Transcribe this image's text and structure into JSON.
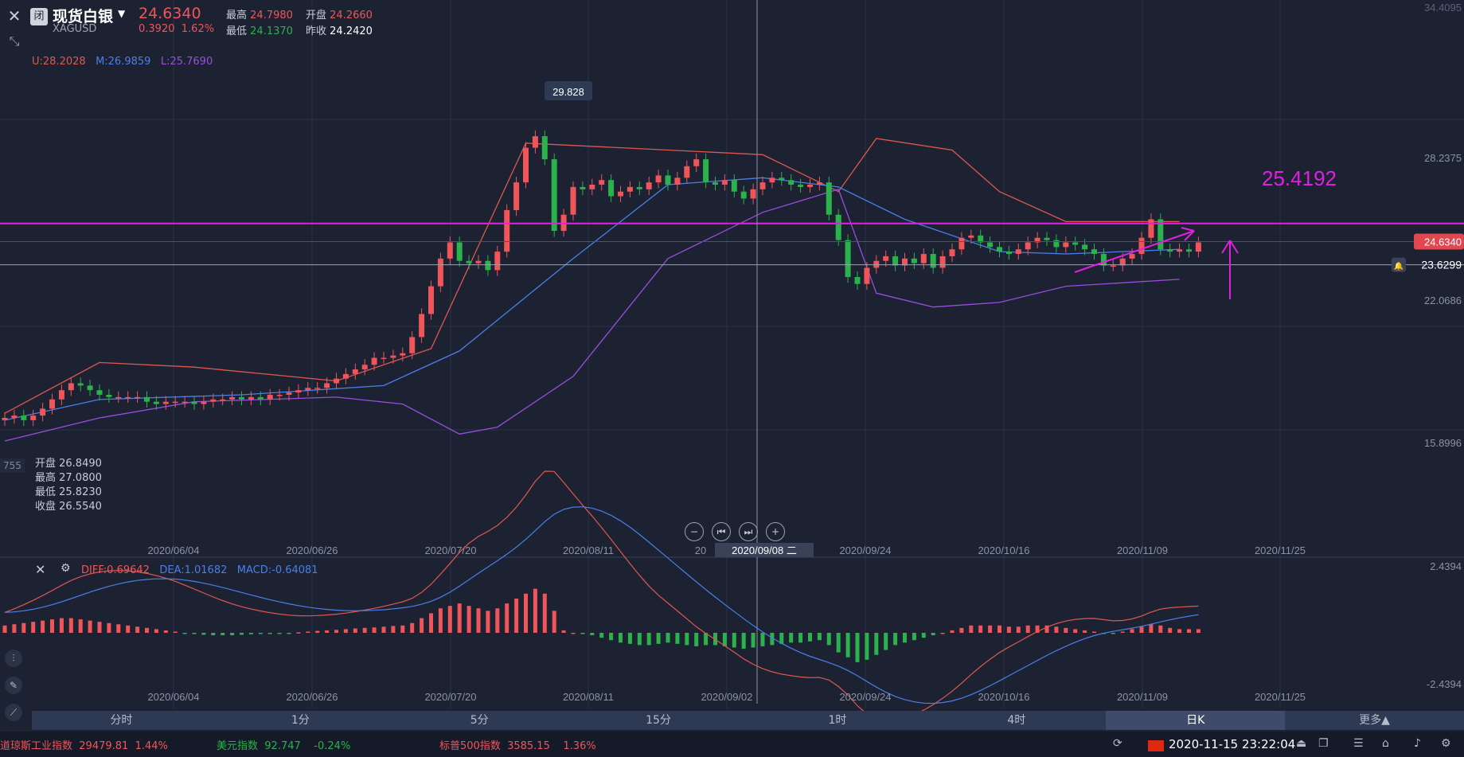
{
  "header": {
    "close_icon": "close-icon",
    "badge": "闭",
    "title": "现货白银",
    "symbol": "XAGUSD",
    "price": "24.6340",
    "change": "0.3920",
    "change_pct": "1.62%",
    "high_label": "最高",
    "high": "24.7980",
    "open_label": "开盘",
    "open": "24.2660",
    "low_label": "最低",
    "low": "24.1370",
    "prev_label": "昨收",
    "prev": "24.2420"
  },
  "bands": {
    "u": "U:28.2028",
    "m": "M:26.9859",
    "l": "L:25.7690"
  },
  "ohlc_box": {
    "open": "开盘 26.8490",
    "high": "最高 27.0800",
    "low": "最低 25.8230",
    "close": "收盘 26.5540",
    "left_edge_value": "755"
  },
  "annotations": {
    "peak_label": "29.828",
    "level_label": "25.4192"
  },
  "right_axis": {
    "top_label": "34.4095",
    "labels": [
      "28.2375",
      "22.0686",
      "15.8996"
    ],
    "current_price": "24.6340",
    "alert_price": "23.6299",
    "macd_labels": [
      "2.4394",
      "-2.4394"
    ]
  },
  "x_axis_labels": [
    "2020/06/04",
    "2020/06/26",
    "2020/07/20",
    "2020/08/11",
    "20",
    "2020/09/24",
    "2020/10/16",
    "2020/11/09",
    "2020/11/25"
  ],
  "crosshair_date": "2020/09/08 二",
  "macd_x_axis_labels": [
    "2020/06/04",
    "2020/06/26",
    "2020/07/20",
    "2020/08/11",
    "2020/09/02",
    "2020/09/24",
    "2020/10/16",
    "2020/11/09",
    "2020/11/25"
  ],
  "macd": {
    "diff": "DIFF:0.69642",
    "dea": "DEA:1.01682",
    "macd": "MACD:-0.64081"
  },
  "timeframes": [
    "分时",
    "1分",
    "5分",
    "15分",
    "1时",
    "4时",
    "日K",
    "更多▲"
  ],
  "active_timeframe": "日K",
  "status_bar": {
    "ticker1_name": "道琼斯工业指数",
    "ticker1_value": "29479.81",
    "ticker1_pct": "1.44%",
    "ticker2_name": "美元指数",
    "ticker2_value": "92.747",
    "ticker2_pct": "-0.24%",
    "ticker3_name": "标普500指数",
    "ticker3_value": "3585.15",
    "ticker3_pct": "1.36%",
    "datetime": "2020-11-15 23:22:04"
  },
  "colors": {
    "up": "#f0555a",
    "down": "#2bb24c",
    "magenta": "#e020e0",
    "upper_band": "#e0574f",
    "mid_band": "#4a7fe8",
    "lower_band": "#9a4de0",
    "background": "#1c2232"
  },
  "chart_data": [
    {
      "type": "candlestick",
      "series_name": "XAGUSD",
      "x": [
        "05/21",
        "05/22",
        "05/25",
        "05/26",
        "05/27",
        "05/28",
        "05/29",
        "06/01",
        "06/02",
        "06/03",
        "06/04",
        "06/05",
        "06/08",
        "06/09",
        "06/10",
        "06/11",
        "06/12",
        "06/15",
        "06/16",
        "06/17",
        "06/18",
        "06/19",
        "06/22",
        "06/23",
        "06/24",
        "06/25",
        "06/26",
        "06/29",
        "06/30",
        "07/01",
        "07/02",
        "07/03",
        "07/06",
        "07/07",
        "07/08",
        "07/09",
        "07/10",
        "07/13",
        "07/14",
        "07/15",
        "07/16",
        "07/17",
        "07/20",
        "07/21",
        "07/22",
        "07/23",
        "07/24",
        "07/27",
        "07/28",
        "07/29",
        "07/30",
        "07/31",
        "08/03",
        "08/04",
        "08/05",
        "08/06",
        "08/07",
        "08/10",
        "08/11",
        "08/12",
        "08/13",
        "08/14",
        "08/17",
        "08/18",
        "08/19",
        "08/20",
        "08/21",
        "08/24",
        "08/25",
        "08/26",
        "08/27",
        "08/28",
        "08/31",
        "09/01",
        "09/02",
        "09/03",
        "09/04",
        "09/07",
        "09/08",
        "09/09",
        "09/10",
        "09/11",
        "09/14",
        "09/15",
        "09/16",
        "09/17",
        "09/18",
        "09/21",
        "09/22",
        "09/23",
        "09/24",
        "09/25",
        "09/28",
        "09/29",
        "09/30",
        "10/01",
        "10/02",
        "10/05",
        "10/06",
        "10/07",
        "10/08",
        "10/09",
        "10/12",
        "10/13",
        "10/14",
        "10/15",
        "10/16",
        "10/19",
        "10/20",
        "10/21",
        "10/22",
        "10/23",
        "10/26",
        "10/27",
        "10/28",
        "10/29",
        "10/30",
        "11/02",
        "11/03",
        "11/04",
        "11/05",
        "11/06",
        "11/09",
        "11/10",
        "11/11",
        "11/12",
        "11/13"
      ],
      "open": [
        16.9,
        17.0,
        17.1,
        16.9,
        17.1,
        17.4,
        17.8,
        18.2,
        18.5,
        18.4,
        18.2,
        18.0,
        17.9,
        17.9,
        17.9,
        17.9,
        17.7,
        17.6,
        17.7,
        17.7,
        17.7,
        17.6,
        17.7,
        17.8,
        17.8,
        17.9,
        17.8,
        17.9,
        17.8,
        18.0,
        18.0,
        18.1,
        18.2,
        18.3,
        18.3,
        18.5,
        18.7,
        18.9,
        19.1,
        19.3,
        19.6,
        19.6,
        19.7,
        19.8,
        20.5,
        21.5,
        22.7,
        23.9,
        24.6,
        23.8,
        23.7,
        23.8,
        23.4,
        24.2,
        26.0,
        27.2,
        28.7,
        29.2,
        28.2,
        25.1,
        25.8,
        27.0,
        26.9,
        27.1,
        27.3,
        26.6,
        26.8,
        27.0,
        26.9,
        27.2,
        27.5,
        27.1,
        27.4,
        27.9,
        28.2,
        27.2,
        27.1,
        27.3,
        26.8,
        26.5,
        26.9,
        27.2,
        27.4,
        27.3,
        27.1,
        27.0,
        27.1,
        27.2,
        25.8,
        24.7,
        23.1,
        22.8,
        23.5,
        23.8,
        24.0,
        23.6,
        23.9,
        23.7,
        24.1,
        23.5,
        24.0,
        24.3,
        24.8,
        24.9,
        24.6,
        24.4,
        24.2,
        24.1,
        24.3,
        24.6,
        24.8,
        24.7,
        24.4,
        24.6,
        24.5,
        24.3,
        24.1,
        23.6,
        23.6,
        23.9,
        24.1,
        24.8,
        25.6,
        24.3,
        24.2,
        24.3,
        24.2
      ],
      "close": [
        17.0,
        17.1,
        16.9,
        17.1,
        17.4,
        17.8,
        18.2,
        18.5,
        18.4,
        18.2,
        18.0,
        17.9,
        17.9,
        17.9,
        17.9,
        17.7,
        17.6,
        17.7,
        17.7,
        17.7,
        17.6,
        17.7,
        17.8,
        17.8,
        17.9,
        17.8,
        17.9,
        17.8,
        18.0,
        18.0,
        18.1,
        18.2,
        18.3,
        18.3,
        18.5,
        18.7,
        18.9,
        19.1,
        19.3,
        19.6,
        19.6,
        19.7,
        19.8,
        20.5,
        21.5,
        22.7,
        23.9,
        24.6,
        23.8,
        23.7,
        23.8,
        23.4,
        24.2,
        26.0,
        27.2,
        28.7,
        29.2,
        28.2,
        25.1,
        25.8,
        27.0,
        26.9,
        27.1,
        27.3,
        26.6,
        26.8,
        27.0,
        26.9,
        27.2,
        27.5,
        27.1,
        27.4,
        27.9,
        28.2,
        27.2,
        27.1,
        27.3,
        26.8,
        26.5,
        26.9,
        27.2,
        27.4,
        27.3,
        27.1,
        27.0,
        27.1,
        27.2,
        25.8,
        24.7,
        23.1,
        22.8,
        23.5,
        23.8,
        24.0,
        23.6,
        23.9,
        23.7,
        24.1,
        23.5,
        24.0,
        24.3,
        24.8,
        24.9,
        24.6,
        24.4,
        24.2,
        24.1,
        24.3,
        24.6,
        24.8,
        24.7,
        24.4,
        24.6,
        24.5,
        24.3,
        24.1,
        23.6,
        23.6,
        23.9,
        24.1,
        24.8,
        25.6,
        24.3,
        24.2,
        24.3,
        24.2,
        24.6
      ],
      "upper_band_points": [
        [
          0,
          17.2
        ],
        [
          10,
          19.4
        ],
        [
          20,
          19.2
        ],
        [
          35,
          18.6
        ],
        [
          45,
          20.0
        ],
        [
          55,
          28.9
        ],
        [
          70,
          28.6
        ],
        [
          80,
          28.4
        ],
        [
          88,
          26.8
        ],
        [
          92,
          29.1
        ],
        [
          100,
          28.6
        ],
        [
          105,
          26.8
        ],
        [
          112,
          25.5
        ],
        [
          120,
          25.5
        ],
        [
          124,
          25.5
        ]
      ],
      "mid_band_points": [
        [
          0,
          16.9
        ],
        [
          10,
          17.8
        ],
        [
          25,
          18.0
        ],
        [
          40,
          18.4
        ],
        [
          48,
          19.9
        ],
        [
          60,
          23.9
        ],
        [
          70,
          27.1
        ],
        [
          80,
          27.4
        ],
        [
          88,
          27.0
        ],
        [
          95,
          25.6
        ],
        [
          105,
          24.2
        ],
        [
          112,
          24.1
        ],
        [
          124,
          24.3
        ]
      ],
      "lower_band_points": [
        [
          0,
          16.0
        ],
        [
          10,
          17.0
        ],
        [
          20,
          17.7
        ],
        [
          35,
          17.9
        ],
        [
          42,
          17.6
        ],
        [
          48,
          16.3
        ],
        [
          52,
          16.6
        ],
        [
          60,
          18.8
        ],
        [
          70,
          23.9
        ],
        [
          80,
          25.9
        ],
        [
          88,
          26.9
        ],
        [
          92,
          22.4
        ],
        [
          98,
          21.8
        ],
        [
          105,
          22.0
        ],
        [
          112,
          22.7
        ],
        [
          124,
          23.0
        ]
      ],
      "y_axis_ticks": [
        15.8996,
        22.0686,
        28.2375,
        34.4095
      ],
      "ylim": [
        12.0,
        34.4095
      ]
    },
    {
      "type": "macd",
      "series": [
        {
          "name": "DIFF",
          "line": "red"
        },
        {
          "name": "DEA",
          "line": "blue"
        },
        {
          "name": "MACD",
          "bars": true
        }
      ],
      "histogram": [
        0.3,
        0.35,
        0.4,
        0.45,
        0.5,
        0.55,
        0.6,
        0.6,
        0.55,
        0.5,
        0.45,
        0.4,
        0.35,
        0.3,
        0.25,
        0.2,
        0.15,
        0.1,
        0.05,
        -0.02,
        -0.05,
        -0.08,
        -0.1,
        -0.1,
        -0.1,
        -0.08,
        -0.06,
        -0.05,
        -0.04,
        -0.03,
        -0.01,
        0.02,
        0.05,
        0.08,
        0.1,
        0.12,
        0.15,
        0.18,
        0.2,
        0.22,
        0.25,
        0.28,
        0.3,
        0.4,
        0.6,
        0.8,
        1.0,
        1.1,
        1.2,
        1.1,
        1.0,
        0.9,
        1.0,
        1.2,
        1.4,
        1.6,
        1.8,
        1.6,
        0.9,
        0.1,
        0.0,
        -0.05,
        -0.1,
        -0.2,
        -0.3,
        -0.4,
        -0.45,
        -0.5,
        -0.5,
        -0.45,
        -0.4,
        -0.45,
        -0.5,
        -0.55,
        -0.5,
        -0.5,
        -0.55,
        -0.6,
        -0.65,
        -0.6,
        -0.55,
        -0.5,
        -0.45,
        -0.4,
        -0.4,
        -0.35,
        -0.3,
        -0.5,
        -0.8,
        -1.0,
        -1.2,
        -1.1,
        -0.9,
        -0.7,
        -0.5,
        -0.4,
        -0.3,
        -0.2,
        -0.1,
        0.0,
        0.1,
        0.2,
        0.3,
        0.3,
        0.3,
        0.3,
        0.25,
        0.25,
        0.3,
        0.3,
        0.3,
        0.25,
        0.2,
        0.15,
        0.1,
        0.05,
        -0.05,
        -0.05,
        0.05,
        0.15,
        0.25,
        0.35,
        0.3,
        0.2,
        0.15,
        0.15,
        0.15
      ],
      "ylim": [
        -2.4394,
        2.4394
      ]
    }
  ]
}
